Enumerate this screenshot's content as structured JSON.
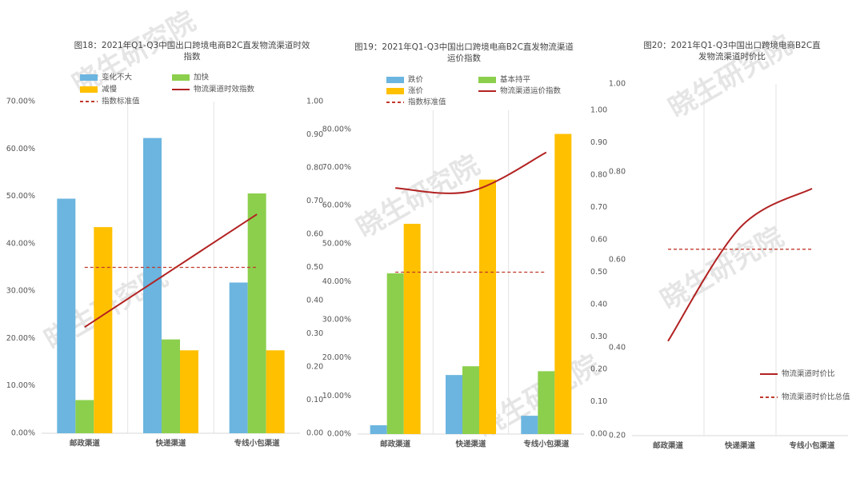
{
  "watermark": "晓生研究院",
  "chart_data": [
    {
      "type": "bar",
      "title": "图18：2021年Q1-Q3中国出口跨境电商B2C直发物流渠道时效指数",
      "categories": [
        "邮政渠道",
        "快递渠道",
        "专线小包渠道"
      ],
      "series": [
        {
          "name": "变化不大",
          "color": "#6bb5e0",
          "values": [
            49.5,
            62.3,
            31.8
          ]
        },
        {
          "name": "加快",
          "color": "#8ccf4d",
          "values": [
            7.0,
            19.8,
            50.6
          ]
        },
        {
          "name": "减慢",
          "color": "#ffc000",
          "values": [
            43.5,
            17.5,
            17.5
          ]
        },
        {
          "name": "物流渠道时效指数",
          "color": "#b22222",
          "type": "line",
          "axis": "y2",
          "values": [
            0.32,
            0.49,
            0.66
          ]
        },
        {
          "name": "指数标准值",
          "color": "#c0392b",
          "type": "line",
          "dash": true,
          "axis": "y2",
          "values": [
            0.5,
            0.5,
            0.5
          ]
        }
      ],
      "ylim": [
        0,
        70
      ],
      "yticks": [
        {
          "value": 0,
          "label": "0.00%"
        },
        {
          "value": 10,
          "label": "10.00%"
        },
        {
          "value": 20,
          "label": "20.00%"
        },
        {
          "value": 30,
          "label": "30.00%"
        },
        {
          "value": 40,
          "label": "40.00%"
        },
        {
          "value": 50,
          "label": "50.00%"
        },
        {
          "value": 60,
          "label": "60.00%"
        },
        {
          "value": 70,
          "label": "70.00%"
        }
      ],
      "y2lim": [
        0,
        1
      ],
      "y2ticks": [
        {
          "value": 0,
          "label": "0.00"
        },
        {
          "value": 0.1,
          "label": "0.10"
        },
        {
          "value": 0.2,
          "label": "0.20"
        },
        {
          "value": 0.3,
          "label": "0.30"
        },
        {
          "value": 0.4,
          "label": "0.40"
        },
        {
          "value": 0.5,
          "label": "0.50"
        },
        {
          "value": 0.6,
          "label": "0.60"
        },
        {
          "value": 0.7,
          "label": "0.70"
        },
        {
          "value": 0.8,
          "label": "0.80"
        },
        {
          "value": 0.9,
          "label": "0.90"
        },
        {
          "value": 1,
          "label": "1.00"
        }
      ]
    },
    {
      "type": "bar",
      "title": "图19：2021年Q1-Q3中国出口跨境电商B2C直发物流渠道运价指数",
      "categories": [
        "邮政渠道",
        "快递渠道",
        "专线小包渠道"
      ],
      "series": [
        {
          "name": "跌价",
          "color": "#6bb5e0",
          "values": [
            2.3,
            15.5,
            4.8
          ]
        },
        {
          "name": "基本持平",
          "color": "#8ccf4d",
          "values": [
            42.2,
            17.8,
            16.5
          ]
        },
        {
          "name": "涨价",
          "color": "#ffc000",
          "values": [
            55.2,
            66.8,
            78.8
          ]
        },
        {
          "name": "物流渠道运价指数",
          "color": "#b22222",
          "type": "line",
          "axis": "y2",
          "values": [
            0.76,
            0.75,
            0.87
          ]
        },
        {
          "name": "指数标准值",
          "color": "#c0392b",
          "type": "line",
          "dash": true,
          "axis": "y2",
          "values": [
            0.5,
            0.5,
            0.5
          ]
        }
      ],
      "ylim": [
        0,
        85
      ],
      "yticks": [
        {
          "value": 0,
          "label": "0.00%"
        },
        {
          "value": 10,
          "label": "10.00%"
        },
        {
          "value": 20,
          "label": "20.00%"
        },
        {
          "value": 30,
          "label": "30.00%"
        },
        {
          "value": 40,
          "label": "40.00%"
        },
        {
          "value": 50,
          "label": "50.00%"
        },
        {
          "value": 60,
          "label": "60.00%"
        },
        {
          "value": 70,
          "label": "70.00%"
        },
        {
          "value": 80,
          "label": "80.00%"
        }
      ],
      "y2lim": [
        0,
        1
      ],
      "y2ticks": [
        {
          "value": 0,
          "label": "0.00"
        },
        {
          "value": 0.1,
          "label": "0.10"
        },
        {
          "value": 0.2,
          "label": "0.20"
        },
        {
          "value": 0.3,
          "label": "0.30"
        },
        {
          "value": 0.4,
          "label": "0.40"
        },
        {
          "value": 0.5,
          "label": "0.50"
        },
        {
          "value": 0.6,
          "label": "0.60"
        },
        {
          "value": 0.7,
          "label": "0.70"
        },
        {
          "value": 0.8,
          "label": "0.80"
        },
        {
          "value": 0.9,
          "label": "0.90"
        },
        {
          "value": 1,
          "label": "1.00"
        }
      ]
    },
    {
      "type": "line",
      "title": "图20：2021年Q1-Q3中国出口跨境电商B2C直发物流渠道时价比",
      "categories": [
        "邮政渠道",
        "快递渠道",
        "专线小包渠道"
      ],
      "series": [
        {
          "name": "物流渠道时价比",
          "color": "#b22222",
          "type": "line",
          "values": [
            0.415,
            0.673,
            0.762
          ]
        },
        {
          "name": "物流渠道时价比总值",
          "color": "#c0392b",
          "type": "line",
          "dash": true,
          "values": [
            0.624,
            0.624,
            0.624
          ]
        }
      ],
      "ylim": [
        0.2,
        1
      ],
      "yticks": [
        {
          "value": 0.2,
          "label": "0.20"
        },
        {
          "value": 0.4,
          "label": "0.40"
        },
        {
          "value": 0.6,
          "label": "0.60"
        },
        {
          "value": 0.8,
          "label": "0.80"
        },
        {
          "value": 1,
          "label": "1.00"
        }
      ]
    }
  ]
}
